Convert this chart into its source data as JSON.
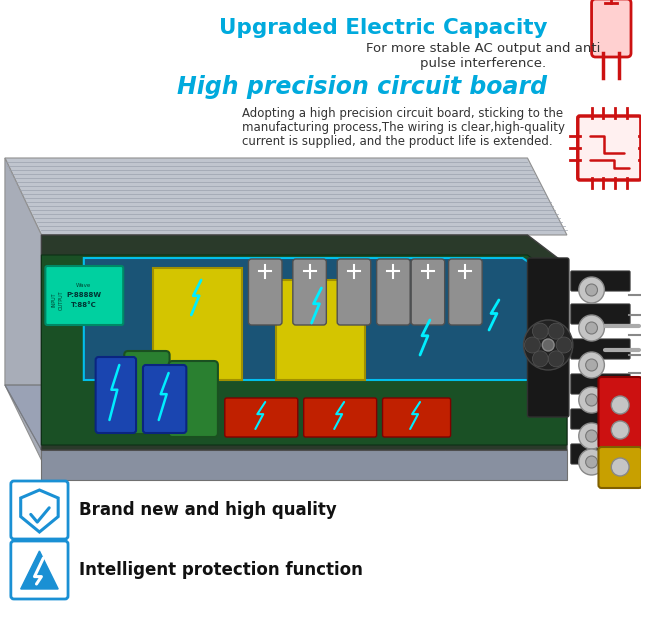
{
  "title1": "Upgraded Electric Capacity",
  "title1_color": "#00aadd",
  "subtitle1_line1": "For more stable AC output and anti",
  "subtitle1_line2": "pulse interference.",
  "title2": "High precision circuit board",
  "title2_color": "#00aadd",
  "subtitle2_line1": "Adopting a high precision circuit board, sticking to the",
  "subtitle2_line2": "manufacturing process,The wiring is clear,high-quality",
  "subtitle2_line3": "current is supplied, and the product life is extended.",
  "feature1_text": "Brand new and high quality",
  "feature2_text": "Intelligent protection function",
  "bg_color": "#ffffff",
  "text_color": "#333333",
  "icon_color": "#1a90d4",
  "red_color": "#cc1111"
}
